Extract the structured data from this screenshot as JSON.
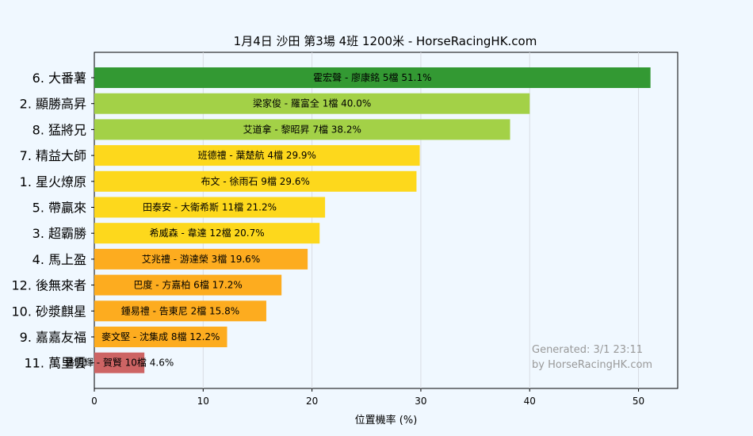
{
  "chart_data": {
    "type": "bar",
    "orientation": "horizontal",
    "title": "1月4日  沙田  第3場  4班  1200米 - HorseRacingHK.com",
    "xlabel": "位置機率 (%)",
    "ylabel": "",
    "xlim": [
      0,
      53.6
    ],
    "xticks": [
      0,
      10,
      20,
      30,
      40,
      50
    ],
    "grid": true,
    "categories": [
      "6. 大番薯",
      "2. 顯勝高昇",
      "8. 猛將兄",
      "7. 精益大師",
      "1. 星火燎原",
      "5. 帶贏來",
      "3. 超霸勝",
      "4. 馬上盈",
      "12. 後無來者",
      "10. 砂漿麒星",
      "9. 嘉嘉友福",
      "11. 萬里雲"
    ],
    "values": [
      51.1,
      40.0,
      38.2,
      29.9,
      29.6,
      21.2,
      20.7,
      19.6,
      17.2,
      15.8,
      12.2,
      4.6
    ],
    "bar_labels": [
      "霍宏聲 - 廖康銘 5檔  51.1%",
      "梁家俊 - 羅富全 1檔  40.0%",
      "艾道拿 - 黎昭昇 7檔  38.2%",
      "班德禮 - 葉楚航 4檔  29.9%",
      "布文 - 徐雨石 9檔  29.6%",
      "田泰安 - 大衛希斯 11檔  21.2%",
      "希威森 - 韋達 12檔  20.7%",
      "艾兆禮 - 游達榮 3檔  19.6%",
      "巴度 - 方嘉柏 6檔  17.2%",
      "鍾易禮 - 告東尼 2檔  15.8%",
      "麥文堅 - 沈集成 8檔  12.2%",
      "潘明輝 - 賀賢 10檔  4.6%"
    ],
    "colors": [
      "#339933",
      "#a3d147",
      "#a3d147",
      "#fdd81c",
      "#fdd81c",
      "#fdd81c",
      "#fdd81c",
      "#fdac1f",
      "#fdac1f",
      "#fdac1f",
      "#fdac1f",
      "#cd6464"
    ],
    "watermark": [
      "Generated: 3/1 23:11",
      "by HorseRacingHK.com"
    ]
  }
}
